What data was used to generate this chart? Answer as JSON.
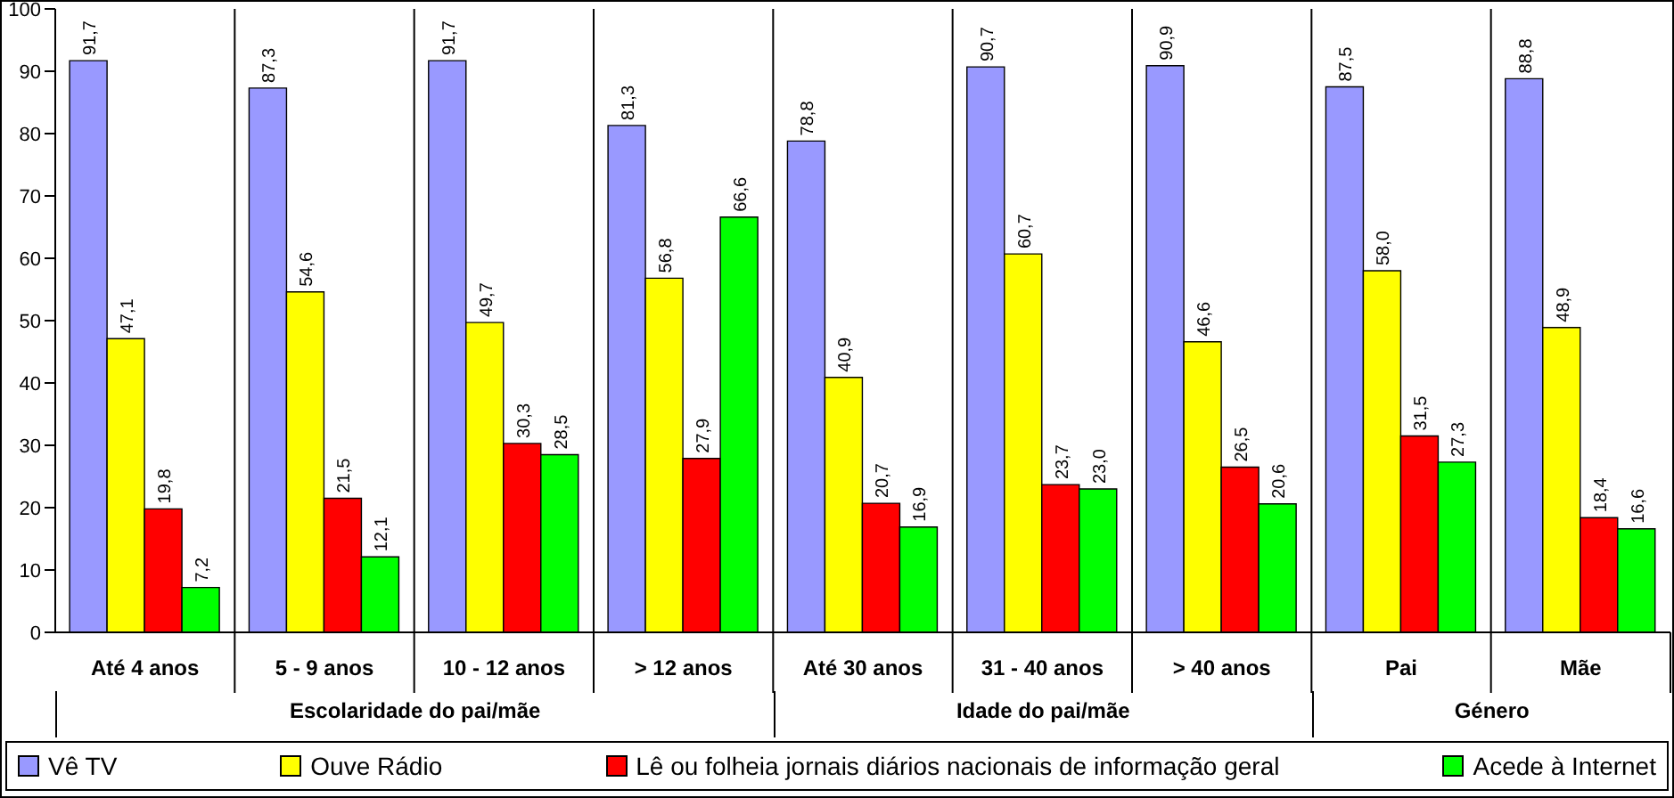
{
  "chart_data": {
    "type": "bar",
    "categories": [
      "Até 4 anos",
      "5 - 9 anos",
      "10 - 12 anos",
      "> 12 anos",
      "Até 30 anos",
      "31 - 40 anos",
      "> 40 anos",
      "Pai",
      "Mãe"
    ],
    "series": [
      {
        "name": "Vê TV",
        "color": "#9999ff",
        "values": [
          91.7,
          87.3,
          91.7,
          81.3,
          78.8,
          90.7,
          90.9,
          87.5,
          88.8
        ],
        "value_labels": [
          "91,7",
          "87,3",
          "91,7",
          "81,3",
          "78,8",
          "90,7",
          "90,9",
          "87,5",
          "88,8"
        ]
      },
      {
        "name": "Ouve Rádio",
        "color": "#ffff00",
        "values": [
          47.1,
          54.6,
          49.7,
          56.8,
          40.9,
          60.7,
          46.6,
          58.0,
          48.9
        ],
        "value_labels": [
          "47,1",
          "54,6",
          "49,7",
          "56,8",
          "40,9",
          "60,7",
          "46,6",
          "58,0",
          "48,9"
        ]
      },
      {
        "name": "Lê ou folheia jornais diários nacionais de informação geral",
        "color": "#ff0000",
        "values": [
          19.8,
          21.5,
          30.3,
          27.9,
          20.7,
          23.7,
          26.5,
          31.5,
          18.4
        ],
        "value_labels": [
          "19,8",
          "21,5",
          "30,3",
          "27,9",
          "20,7",
          "23,7",
          "26,5",
          "31,5",
          "18,4"
        ]
      },
      {
        "name": "Acede à Internet",
        "color": "#00ff00",
        "values": [
          7.2,
          12.1,
          28.5,
          66.6,
          16.9,
          23.0,
          20.6,
          27.3,
          16.6
        ],
        "value_labels": [
          "7,2",
          "12,1",
          "28,5",
          "66,6",
          "16,9",
          "23,0",
          "20,6",
          "27,3",
          "16,6"
        ]
      }
    ],
    "annotations": [
      "Escolaridade do pai/mãe",
      "Idade do pai/mãe",
      "Género"
    ],
    "ylim": [
      0,
      100
    ],
    "yticks": [
      0,
      10,
      20,
      30,
      40,
      50,
      60,
      70,
      80,
      90,
      100
    ],
    "grid": "x",
    "legend": "bottom"
  }
}
